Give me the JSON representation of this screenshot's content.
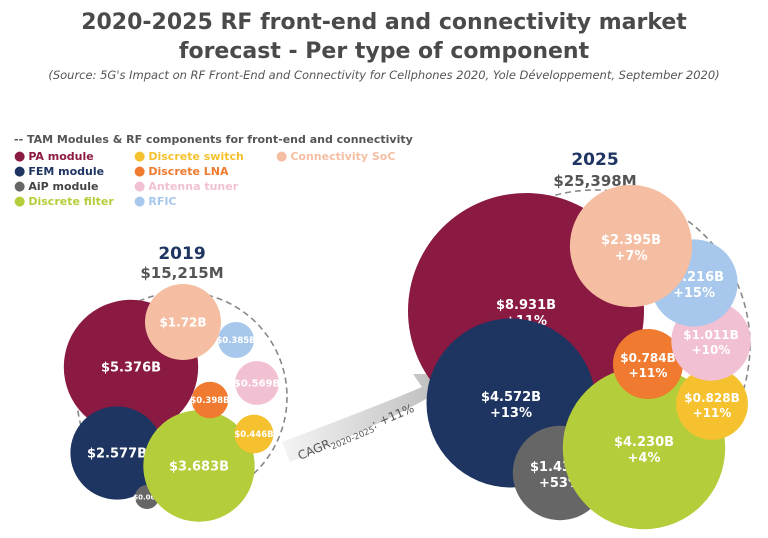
{
  "header": {
    "title_line1": "2020-2025 RF front-end and connectivity market",
    "title_line2": "forecast - Per type of component",
    "source": "(Source: 5G's Impact on RF Front-End and Connectivity for Cellphones 2020, Yole Développement, September 2020)"
  },
  "legend": {
    "heading": "-- TAM Modules & RF components for front-end and connectivity",
    "bullet": "●",
    "items": [
      {
        "label": "PA module",
        "color": "#8b1a42"
      },
      {
        "label": "FEM module",
        "color": "#1e3461"
      },
      {
        "label": "AiP module",
        "color": "#666666"
      },
      {
        "label": "Discrete filter",
        "color": "#b4cd3a"
      },
      {
        "label": "Discrete switch",
        "color": "#f5c12e"
      },
      {
        "label": "Discrete LNA",
        "color": "#f07a2f"
      },
      {
        "label": "Antenna tuner",
        "color": "#f2c0d3"
      },
      {
        "label": "RFIC",
        "color": "#a7c8ec"
      },
      {
        "label": "Connectivity SoC",
        "color": "#f5bea2"
      }
    ]
  },
  "cagr": {
    "prefix": "CAGR",
    "subscript": "2020-2025",
    "suffix": ": +11%"
  },
  "chart_data": {
    "type": "bubble",
    "title": "2020-2025 RF front-end and connectivity market forecast - Per type of component",
    "groups": [
      {
        "year": "2019",
        "total": "$15,215M",
        "bubbles": [
          {
            "component": "PA module",
            "value_label": "$5.376B",
            "value": 5.376,
            "color": "#8b1a42"
          },
          {
            "component": "FEM module",
            "value_label": "$2.577B",
            "value": 2.577,
            "color": "#1e3461"
          },
          {
            "component": "AiP module",
            "value_label": "$0.06B",
            "value": 0.06,
            "color": "#666666"
          },
          {
            "component": "Discrete filter",
            "value_label": "$3.683B",
            "value": 3.683,
            "color": "#b4cd3a"
          },
          {
            "component": "Discrete switch",
            "value_label": "$0.446B",
            "value": 0.446,
            "color": "#f5c12e"
          },
          {
            "component": "Discrete LNA",
            "value_label": "$0.398B",
            "value": 0.398,
            "color": "#f07a2f"
          },
          {
            "component": "Antenna tuner",
            "value_label": "$0.569B",
            "value": 0.569,
            "color": "#f2c0d3"
          },
          {
            "component": "RFIC",
            "value_label": "$0.385B",
            "value": 0.385,
            "color": "#a7c8ec"
          },
          {
            "component": "Connectivity SoC",
            "value_label": "$1.72B",
            "value": 1.72,
            "color": "#f5bea2"
          }
        ]
      },
      {
        "year": "2025",
        "total": "$25,398M",
        "bubbles": [
          {
            "component": "PA module",
            "value_label": "$8.931B",
            "value": 8.931,
            "growth": "+11%",
            "color": "#8b1a42"
          },
          {
            "component": "FEM module",
            "value_label": "$4.572B",
            "value": 4.572,
            "growth": "+13%",
            "color": "#1e3461"
          },
          {
            "component": "AiP module",
            "value_label": "$1.430B",
            "value": 1.43,
            "growth": "+53%",
            "color": "#666666"
          },
          {
            "component": "Discrete filter",
            "value_label": "$4.230B",
            "value": 4.23,
            "growth": "+4%",
            "color": "#b4cd3a"
          },
          {
            "component": "Discrete switch",
            "value_label": "$0.828B",
            "value": 0.828,
            "growth": "+11%",
            "color": "#f5c12e"
          },
          {
            "component": "Discrete LNA",
            "value_label": "$0.784B",
            "value": 0.784,
            "growth": "+11%",
            "color": "#f07a2f"
          },
          {
            "component": "Antenna tuner",
            "value_label": "$1.011B",
            "value": 1.011,
            "growth": "+10%",
            "color": "#f2c0d3"
          },
          {
            "component": "RFIC",
            "value_label": "$1.216B",
            "value": 1.216,
            "growth": "+15%",
            "color": "#a7c8ec"
          },
          {
            "component": "Connectivity SoC",
            "value_label": "$2.395B",
            "value": 2.395,
            "growth": "+7%",
            "color": "#f5bea2"
          }
        ]
      }
    ]
  }
}
